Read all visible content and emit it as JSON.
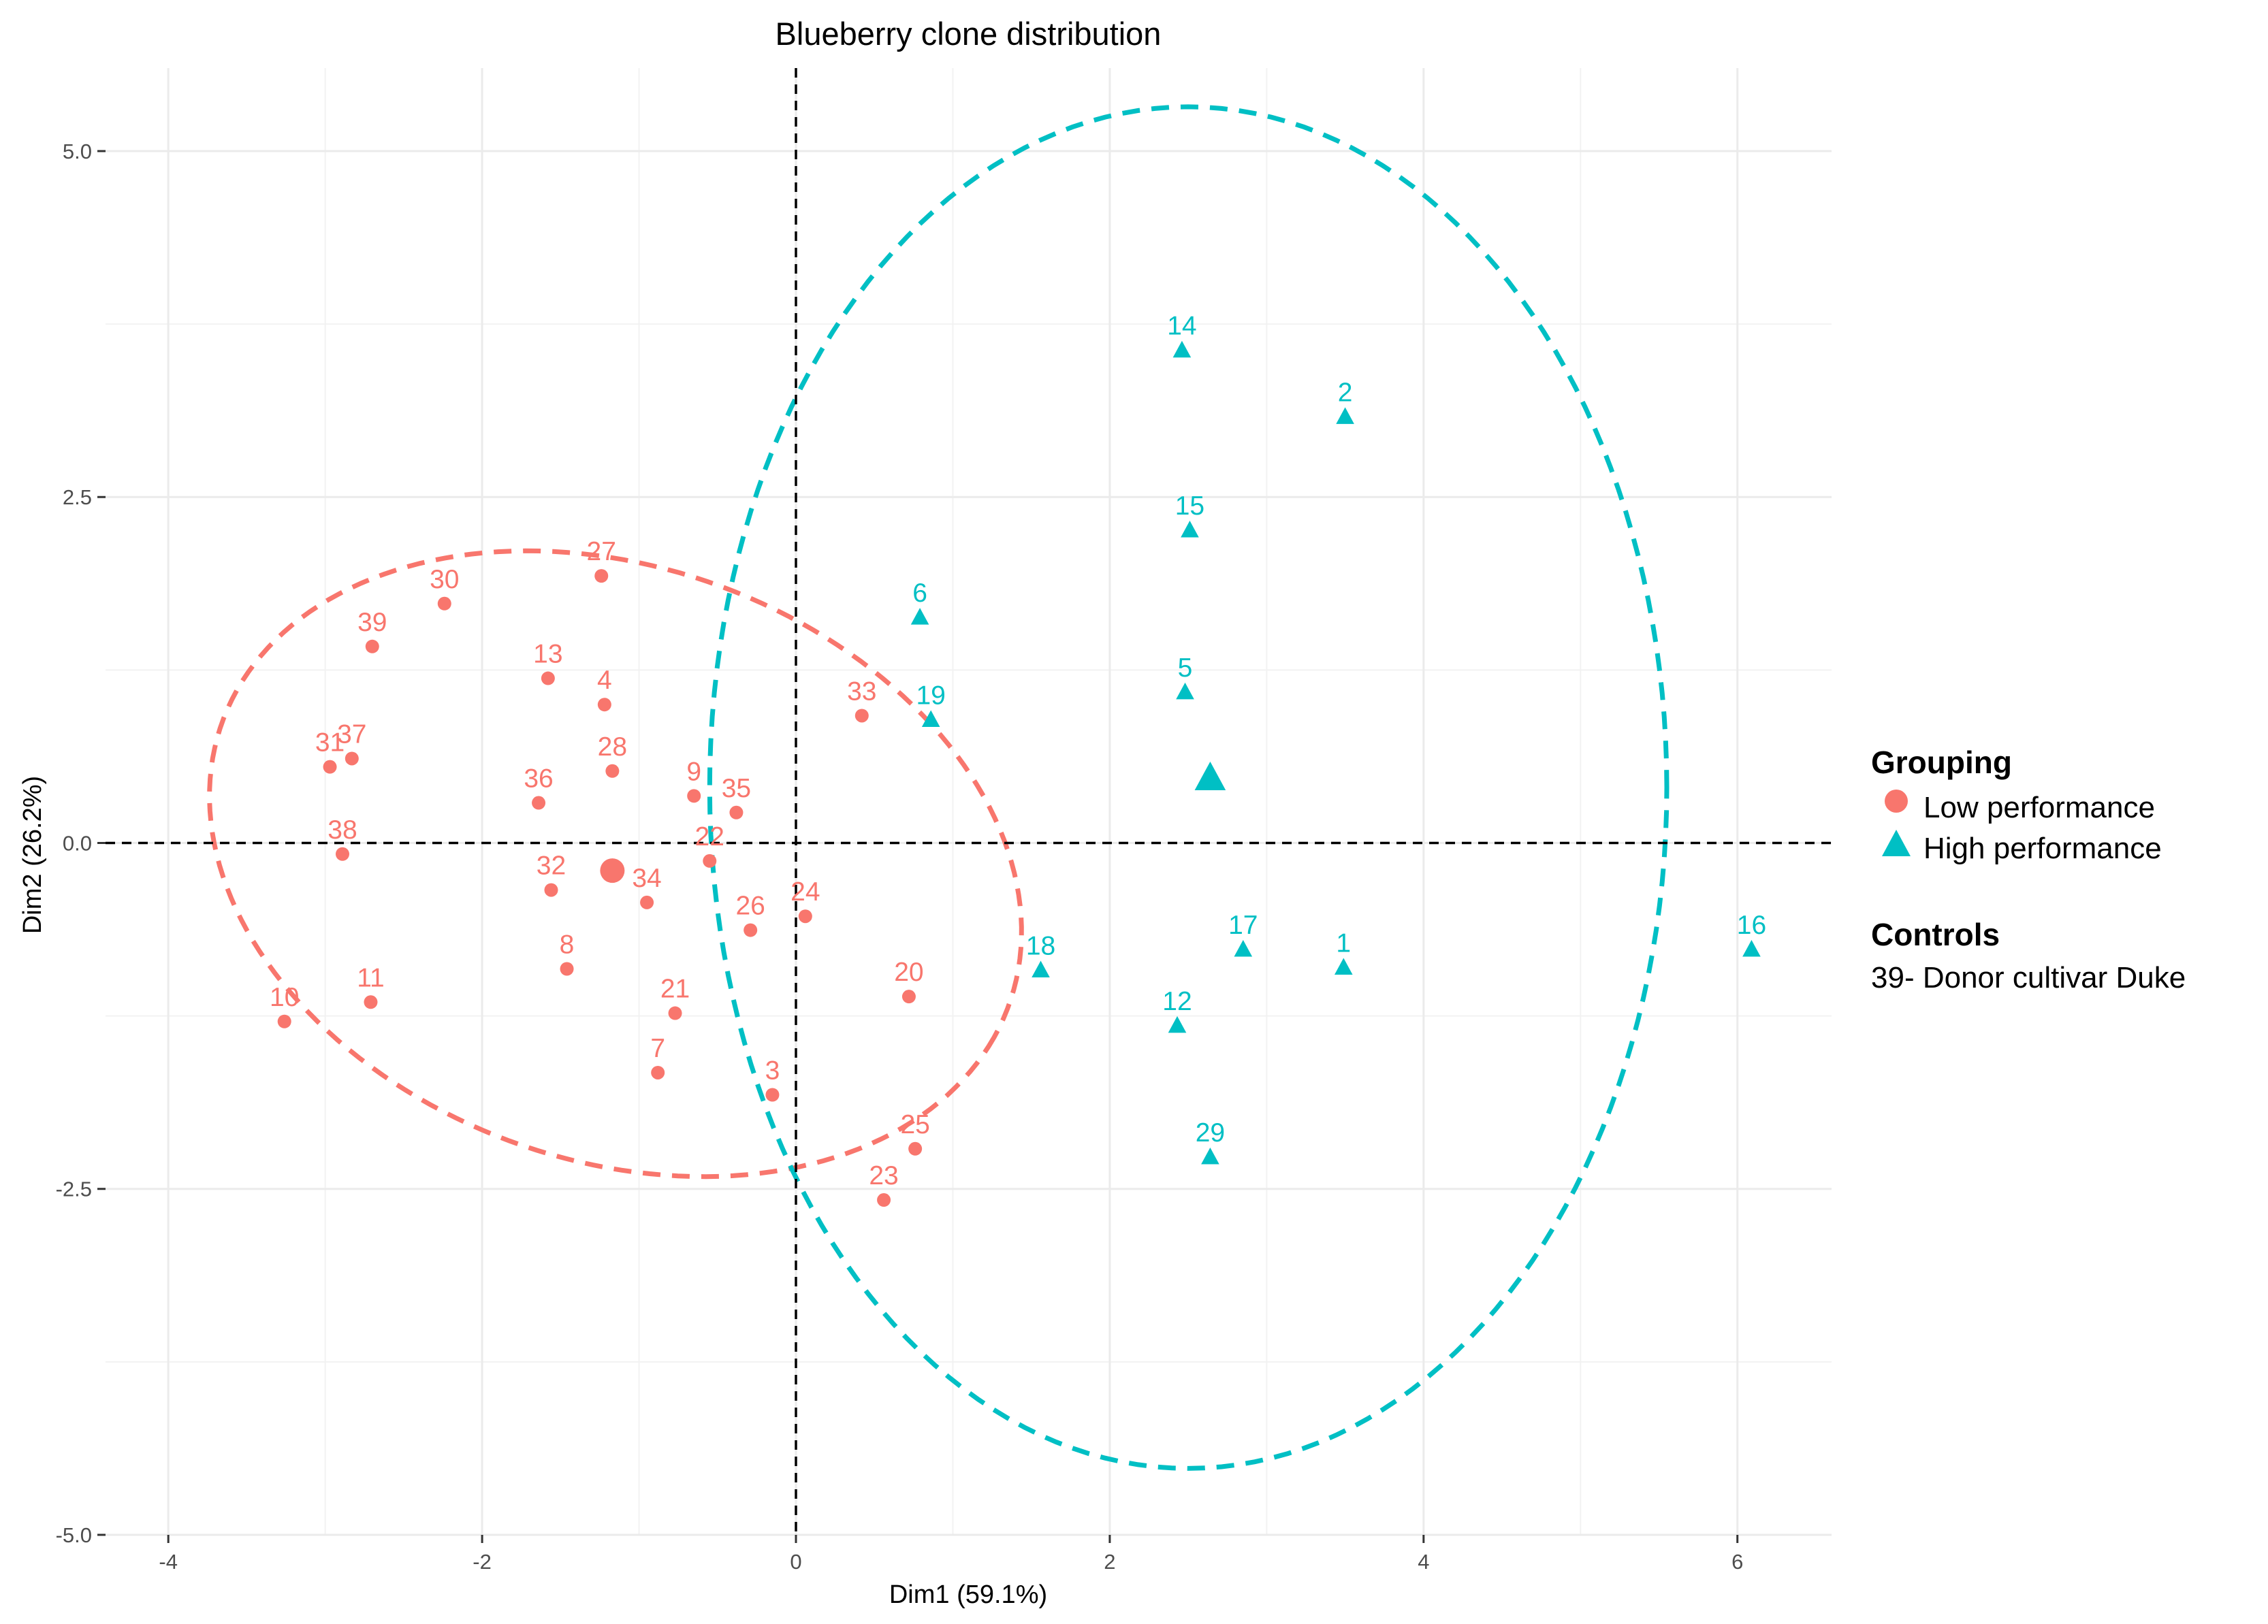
{
  "chart_data": {
    "type": "scatter",
    "title": "Blueberry clone distribution",
    "xlabel": "Dim1 (59.1%)",
    "ylabel": "Dim2 (26.2%)",
    "xlim": [
      -4.4,
      6.6
    ],
    "ylim": [
      -5.0,
      5.6
    ],
    "x_ticks": [
      -4,
      -2,
      0,
      2,
      4,
      6
    ],
    "x_tick_labels": [
      "-4",
      "-2",
      "0",
      "2",
      "4",
      "6"
    ],
    "y_ticks": [
      -5.0,
      -2.5,
      0.0,
      2.5,
      5.0
    ],
    "y_tick_labels": [
      "-5.0",
      "-2.5",
      "0.0",
      "2.5",
      "5.0"
    ],
    "grid": true,
    "reference_lines": {
      "x": 0,
      "y": 0,
      "style": "dashed"
    },
    "legend": {
      "position": "right",
      "title": "Grouping",
      "entries": [
        "Low performance",
        "High performance"
      ],
      "controls_title": "Controls",
      "controls_text": "39- Donor cultivar Duke"
    },
    "series": [
      {
        "name": "Low performance",
        "color": "#F8766D",
        "marker": "circle",
        "centroid": [
          -1.17,
          -0.2
        ],
        "ellipse": {
          "cx": -1.15,
          "cy": -0.15,
          "rx": 2.72,
          "ry": 2.1,
          "angle_deg": -29
        },
        "points": [
          {
            "label": "30",
            "x": -2.24,
            "y": 1.73
          },
          {
            "label": "27",
            "x": -1.24,
            "y": 1.93
          },
          {
            "label": "39",
            "x": -2.7,
            "y": 1.42
          },
          {
            "label": "13",
            "x": -1.58,
            "y": 1.19
          },
          {
            "label": "4",
            "x": -1.22,
            "y": 1.0
          },
          {
            "label": "31",
            "x": -2.97,
            "y": 0.55
          },
          {
            "label": "37",
            "x": -2.83,
            "y": 0.61
          },
          {
            "label": "28",
            "x": -1.17,
            "y": 0.52
          },
          {
            "label": "36",
            "x": -1.64,
            "y": 0.29
          },
          {
            "label": "9",
            "x": -0.65,
            "y": 0.34
          },
          {
            "label": "35",
            "x": -0.38,
            "y": 0.22
          },
          {
            "label": "38",
            "x": -2.89,
            "y": -0.08
          },
          {
            "label": "22",
            "x": -0.55,
            "y": -0.13
          },
          {
            "label": "33",
            "x": 0.42,
            "y": 0.92
          },
          {
            "label": "32",
            "x": -1.56,
            "y": -0.34
          },
          {
            "label": "34",
            "x": -0.95,
            "y": -0.43
          },
          {
            "label": "24",
            "x": 0.06,
            "y": -0.53
          },
          {
            "label": "26",
            "x": -0.29,
            "y": -0.63
          },
          {
            "label": "8",
            "x": -1.46,
            "y": -0.91
          },
          {
            "label": "20",
            "x": 0.72,
            "y": -1.11
          },
          {
            "label": "11",
            "x": -2.71,
            "y": -1.15
          },
          {
            "label": "10",
            "x": -3.26,
            "y": -1.29
          },
          {
            "label": "21",
            "x": -0.77,
            "y": -1.23
          },
          {
            "label": "7",
            "x": -0.88,
            "y": -1.66
          },
          {
            "label": "3",
            "x": -0.15,
            "y": -1.82
          },
          {
            "label": "25",
            "x": 0.76,
            "y": -2.21
          },
          {
            "label": "23",
            "x": 0.56,
            "y": -2.58
          }
        ]
      },
      {
        "name": "High performance",
        "color": "#00BFC4",
        "marker": "triangle",
        "centroid": [
          2.64,
          0.47
        ],
        "ellipse": {
          "cx": 2.5,
          "cy": 0.4,
          "rx": 3.05,
          "ry": 4.92,
          "angle_deg": 0
        },
        "points": [
          {
            "label": "14",
            "x": 2.46,
            "y": 3.56
          },
          {
            "label": "2",
            "x": 3.5,
            "y": 3.08
          },
          {
            "label": "15",
            "x": 2.51,
            "y": 2.26
          },
          {
            "label": "6",
            "x": 0.79,
            "y": 1.63
          },
          {
            "label": "5",
            "x": 2.48,
            "y": 1.09
          },
          {
            "label": "19",
            "x": 0.86,
            "y": 0.89
          },
          {
            "label": "17",
            "x": 2.85,
            "y": -0.77
          },
          {
            "label": "1",
            "x": 3.49,
            "y": -0.9
          },
          {
            "label": "16",
            "x": 6.09,
            "y": -0.77
          },
          {
            "label": "18",
            "x": 1.56,
            "y": -0.92
          },
          {
            "label": "12",
            "x": 2.43,
            "y": -1.32
          },
          {
            "label": "29",
            "x": 2.64,
            "y": -2.27
          }
        ]
      }
    ]
  }
}
